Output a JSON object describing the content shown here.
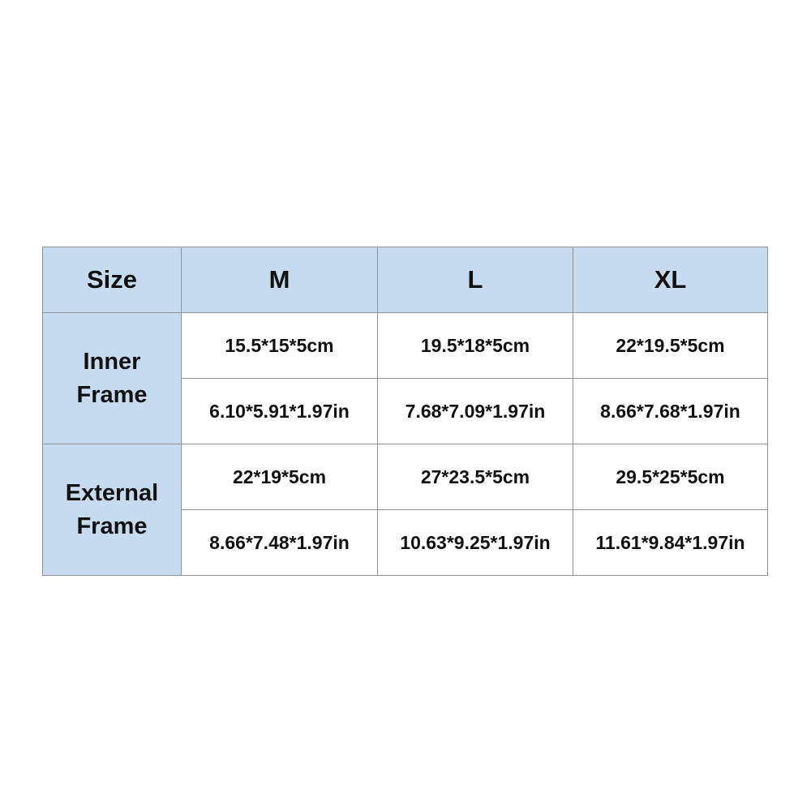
{
  "table": {
    "header": [
      "Size",
      "M",
      "L",
      "XL"
    ],
    "groups": [
      {
        "label": "Inner Frame",
        "rows": [
          [
            "15.5*15*5cm",
            "19.5*18*5cm",
            "22*19.5*5cm"
          ],
          [
            "6.10*5.91*1.97in",
            "7.68*7.09*1.97in",
            "8.66*7.68*1.97in"
          ]
        ]
      },
      {
        "label": "External Frame",
        "rows": [
          [
            "22*19*5cm",
            "27*23.5*5cm",
            "29.5*25*5cm"
          ],
          [
            "8.66*7.48*1.97in",
            "10.63*9.25*1.97in",
            "11.61*9.84*1.97in"
          ]
        ]
      }
    ]
  }
}
